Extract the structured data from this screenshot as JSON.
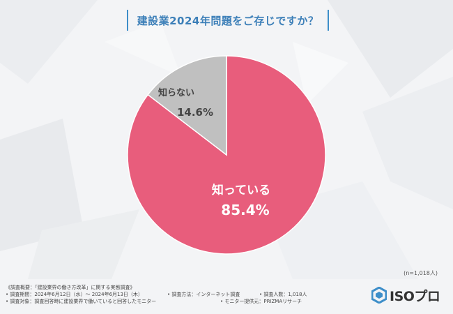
{
  "title": "建設業2024年問題をご存じですか？",
  "chart_data": {
    "type": "pie",
    "title": "建設業2024年問題をご存じですか？",
    "slices": [
      {
        "label": "知っている",
        "value": 85.4,
        "display": "85.4%",
        "color": "#e85d7c"
      },
      {
        "label": "知らない",
        "value": 14.6,
        "display": "14.6%",
        "color": "#c0c0c0"
      }
    ]
  },
  "sample_note": "(n=1,018人)",
  "survey": {
    "overview": "《調査概要：「建設業界の働き方改革」に関する実態調査》",
    "period": "• 調査期間：2024年6月12日（水）～ 2024年6月13日（木）",
    "method": "• 調査方法：インターネット調査",
    "count": "• 調査人数：1,018人",
    "target": "• 調査対象：調査回答時に建設業界で働いていると回答したモニター",
    "provider": "• モニター提供元：PRIZMAリサーチ"
  },
  "logo": {
    "text": "ISOプロ",
    "icon": "hexagon-logo-icon",
    "color": "#3d8ec9"
  }
}
